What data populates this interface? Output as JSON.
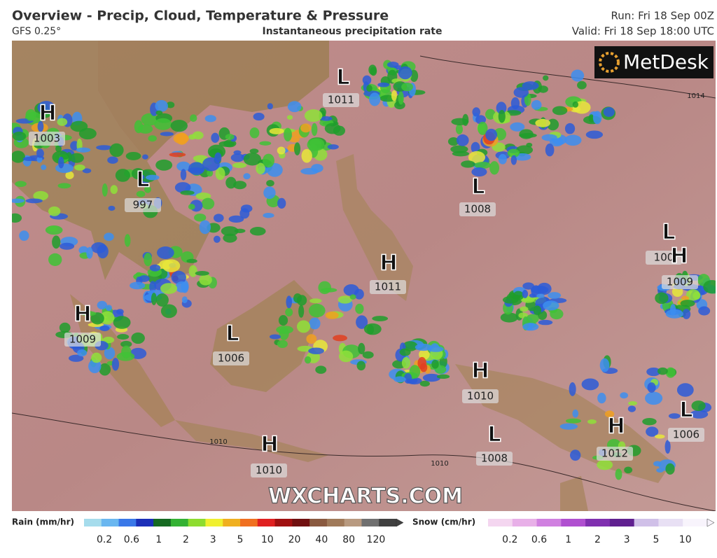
{
  "header": {
    "title": "Overview - Precip, Cloud, Temperature & Pressure",
    "model": "GFS 0.25°",
    "subtitle": "Instantaneous precipitation rate",
    "run": "Run: Fri 18 Sep 00Z",
    "valid": "Valid: Fri 18 Sep 18:00 UTC"
  },
  "logo": "MetDesk",
  "watermark": "WXCHARTS.COM",
  "pressure_systems": [
    {
      "type": "H",
      "label": "1003"
    },
    {
      "type": "L",
      "label": "1011"
    },
    {
      "type": "L",
      "label": "997"
    },
    {
      "type": "L",
      "label": "1008"
    },
    {
      "type": "L",
      "label": "100"
    },
    {
      "type": "H",
      "label": "1009"
    },
    {
      "type": "H",
      "label": "1011"
    },
    {
      "type": "H",
      "label": "1009"
    },
    {
      "type": "L",
      "label": "1006"
    },
    {
      "type": "H",
      "label": "1010"
    },
    {
      "type": "L",
      "label": "1008"
    },
    {
      "type": "H",
      "label": "1012"
    },
    {
      "type": "L",
      "label": "1006"
    },
    {
      "type": "H",
      "label": "1010"
    }
  ],
  "isobar_labels": [
    "1014",
    "1010",
    "1010"
  ],
  "legend": {
    "rain": {
      "title": "Rain (mm/hr)",
      "labels": [
        0.2,
        0.6,
        1,
        2,
        3,
        5,
        10,
        20,
        40,
        80,
        120
      ]
    },
    "snow": {
      "title": "Snow (cm/hr)",
      "labels": [
        0.2,
        0.6,
        1,
        2,
        3,
        5,
        10
      ]
    }
  }
}
